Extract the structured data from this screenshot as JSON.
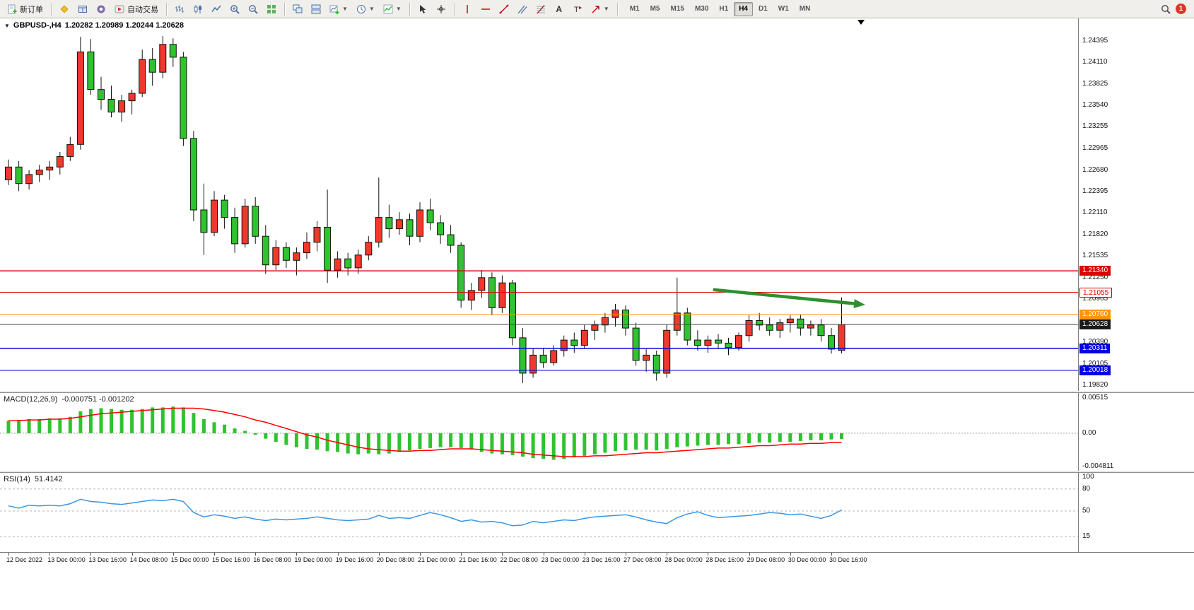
{
  "toolbar": {
    "new_order_label": "新订单",
    "autotrading_label": "自动交易",
    "timeframes": [
      "M1",
      "M5",
      "M15",
      "M30",
      "H1",
      "H4",
      "D1",
      "W1",
      "MN"
    ],
    "active_timeframe": "H4",
    "notification_count": "1"
  },
  "chart": {
    "title": "GBPUSD-,H4",
    "ohlc_text": "1.20282 1.20989 1.20244 1.20628",
    "bull_color": "#f0382c",
    "bear_color": "#2fc32f",
    "price_axis_labels": [
      "1.24395",
      "1.24110",
      "1.23825",
      "1.23540",
      "1.23255",
      "1.22965",
      "1.22680",
      "1.22395",
      "1.22110",
      "1.21820",
      "1.21535",
      "1.21250",
      "1.20965",
      "1.20680",
      "1.20390",
      "1.20105",
      "1.19820"
    ],
    "time_axis_labels": [
      "12 Dec 2022",
      "13 Dec 00:00",
      "13 Dec 16:00",
      "14 Dec 08:00",
      "15 Dec 00:00",
      "15 Dec 16:00",
      "16 Dec 08:00",
      "19 Dec 00:00",
      "19 Dec 16:00",
      "20 Dec 08:00",
      "21 Dec 00:00",
      "21 Dec 16:00",
      "22 Dec 08:00",
      "23 Dec 00:00",
      "23 Dec 16:00",
      "27 Dec 08:00",
      "28 Dec 00:00",
      "28 Dec 16:00",
      "29 Dec 08:00",
      "30 Dec 00:00",
      "30 Dec 16:00"
    ],
    "hlines": [
      {
        "label": "1.21340",
        "value": 1.2134,
        "color": "#dd0000",
        "tag_bg": "#dd0000",
        "tag_fg": "#ffffff"
      },
      {
        "label": "1.21055",
        "value": 1.21055,
        "color": "#dd0000",
        "tag_bg": "#ffffff",
        "tag_fg": "#dd0000",
        "tag_border": "#dd0000"
      },
      {
        "label": "1.20760",
        "value": 1.2076,
        "color": "#ff9500",
        "tag_bg": "#ff9500",
        "tag_fg": "#ffffff"
      },
      {
        "label": "1.20628",
        "value": 1.20628,
        "color": "#444444",
        "tag_bg": "#1a1a1a",
        "tag_fg": "#ffffff"
      },
      {
        "label": "1.20311",
        "value": 1.20311,
        "color": "#0000e0",
        "tag_bg": "#0000e0",
        "tag_fg": "#ffffff"
      },
      {
        "label": "1.20018",
        "value": 1.20018,
        "color": "#0000e0",
        "tag_bg": "#0000e0",
        "tag_fg": "#ffffff"
      }
    ],
    "arrow": {
      "from_index": 68.5,
      "from_price": 1.2109,
      "to_index": 83.3,
      "to_price": 1.2089,
      "color": "#2f8f2f"
    },
    "candles": [
      [
        1.2255,
        1.2282,
        1.2248,
        1.2272
      ],
      [
        1.2272,
        1.228,
        1.224,
        1.225
      ],
      [
        1.225,
        1.2268,
        1.2242,
        1.2262
      ],
      [
        1.2262,
        1.2275,
        1.2252,
        1.2268
      ],
      [
        1.2268,
        1.228,
        1.2255,
        1.2272
      ],
      [
        1.2272,
        1.2292,
        1.2262,
        1.2286
      ],
      [
        1.2286,
        1.2312,
        1.228,
        1.2302
      ],
      [
        1.2302,
        1.2445,
        1.2295,
        1.2425
      ],
      [
        1.2425,
        1.2442,
        1.2368,
        1.2375
      ],
      [
        1.2375,
        1.2392,
        1.2348,
        1.2362
      ],
      [
        1.2362,
        1.238,
        1.2338,
        1.2345
      ],
      [
        1.2345,
        1.2368,
        1.2332,
        1.236
      ],
      [
        1.236,
        1.2375,
        1.2342,
        1.237
      ],
      [
        1.237,
        1.2428,
        1.2365,
        1.2415
      ],
      [
        1.2415,
        1.243,
        1.238,
        1.2398
      ],
      [
        1.2398,
        1.2446,
        1.239,
        1.2435
      ],
      [
        1.2435,
        1.2443,
        1.2405,
        1.2418
      ],
      [
        1.2418,
        1.2425,
        1.23,
        1.231
      ],
      [
        1.231,
        1.232,
        1.22,
        1.2215
      ],
      [
        1.2215,
        1.225,
        1.2155,
        1.2185
      ],
      [
        1.2185,
        1.224,
        1.218,
        1.2228
      ],
      [
        1.2228,
        1.2235,
        1.219,
        1.2205
      ],
      [
        1.2205,
        1.2218,
        1.2158,
        1.217
      ],
      [
        1.217,
        1.223,
        1.2165,
        1.222
      ],
      [
        1.222,
        1.2232,
        1.217,
        1.218
      ],
      [
        1.218,
        1.2195,
        1.213,
        1.2142
      ],
      [
        1.2142,
        1.2175,
        1.2135,
        1.2165
      ],
      [
        1.2165,
        1.2172,
        1.2138,
        1.2148
      ],
      [
        1.2148,
        1.2165,
        1.2128,
        1.2158
      ],
      [
        1.2158,
        1.2185,
        1.215,
        1.2172
      ],
      [
        1.2172,
        1.22,
        1.216,
        1.2192
      ],
      [
        1.2192,
        1.2242,
        1.2118,
        1.2135
      ],
      [
        1.2135,
        1.216,
        1.2125,
        1.215
      ],
      [
        1.215,
        1.2158,
        1.2128,
        1.2138
      ],
      [
        1.2138,
        1.2162,
        1.213,
        1.2155
      ],
      [
        1.2155,
        1.218,
        1.2148,
        1.2172
      ],
      [
        1.2172,
        1.2258,
        1.2165,
        1.2205
      ],
      [
        1.2205,
        1.2222,
        1.2178,
        1.219
      ],
      [
        1.219,
        1.2212,
        1.2182,
        1.2202
      ],
      [
        1.2202,
        1.221,
        1.2168,
        1.218
      ],
      [
        1.218,
        1.2225,
        1.2172,
        1.2215
      ],
      [
        1.2215,
        1.223,
        1.2188,
        1.2198
      ],
      [
        1.2198,
        1.2208,
        1.217,
        1.2182
      ],
      [
        1.2182,
        1.2195,
        1.2158,
        1.2168
      ],
      [
        1.2168,
        1.2172,
        1.2085,
        1.2095
      ],
      [
        1.2095,
        1.2118,
        1.2082,
        1.2108
      ],
      [
        1.2108,
        1.2135,
        1.2098,
        1.2125
      ],
      [
        1.2125,
        1.2132,
        1.2075,
        1.2085
      ],
      [
        1.2085,
        1.2128,
        1.2078,
        1.2118
      ],
      [
        1.2118,
        1.2122,
        1.2035,
        1.2045
      ],
      [
        1.2045,
        1.2058,
        1.1985,
        1.1998
      ],
      [
        1.1998,
        1.203,
        1.1992,
        1.2022
      ],
      [
        1.2022,
        1.2032,
        1.2005,
        1.2012
      ],
      [
        1.2012,
        1.2035,
        1.2008,
        1.2028
      ],
      [
        1.2028,
        1.2048,
        1.202,
        1.2042
      ],
      [
        1.2042,
        1.2052,
        1.2025,
        1.2035
      ],
      [
        1.2035,
        1.2062,
        1.203,
        1.2055
      ],
      [
        1.2055,
        1.2068,
        1.2042,
        1.2062
      ],
      [
        1.2062,
        1.2078,
        1.2052,
        1.2072
      ],
      [
        1.2072,
        1.209,
        1.206,
        1.2082
      ],
      [
        1.2082,
        1.2088,
        1.2048,
        1.2058
      ],
      [
        1.2058,
        1.2065,
        1.2008,
        1.2015
      ],
      [
        1.2015,
        1.203,
        1.2,
        1.2022
      ],
      [
        1.2022,
        1.2028,
        1.1988,
        1.1998
      ],
      [
        1.1998,
        1.2062,
        1.1992,
        1.2055
      ],
      [
        1.2055,
        1.2125,
        1.2048,
        1.2078
      ],
      [
        1.2078,
        1.2085,
        1.2035,
        1.2042
      ],
      [
        1.2042,
        1.2055,
        1.2028,
        1.2035
      ],
      [
        1.2035,
        1.2048,
        1.2025,
        1.2042
      ],
      [
        1.2042,
        1.205,
        1.203,
        1.2038
      ],
      [
        1.2038,
        1.2045,
        1.2022,
        1.2032
      ],
      [
        1.2032,
        1.2052,
        1.2028,
        1.2048
      ],
      [
        1.2048,
        1.2075,
        1.204,
        1.2068
      ],
      [
        1.2068,
        1.2078,
        1.2055,
        1.2062
      ],
      [
        1.2062,
        1.2072,
        1.2048,
        1.2055
      ],
      [
        1.2055,
        1.207,
        1.2045,
        1.2065
      ],
      [
        1.2065,
        1.2075,
        1.2052,
        1.207
      ],
      [
        1.207,
        1.2076,
        1.2048,
        1.2058
      ],
      [
        1.2058,
        1.2068,
        1.2048,
        1.2062
      ],
      [
        1.2062,
        1.207,
        1.204,
        1.2048
      ],
      [
        1.2048,
        1.2058,
        1.2024,
        1.203
      ],
      [
        1.20282,
        1.20989,
        1.20244,
        1.20628
      ]
    ]
  },
  "macd": {
    "label": "MACD(12,26,9)",
    "values_text": "-0.000751 -0.001202",
    "axis_labels": [
      "0.00515",
      "0.00",
      "-0.004811"
    ],
    "scale_max": 0.00515,
    "scale_min": -0.004811,
    "histogram_color": "#2fc32f",
    "signal_color": "#ff0000",
    "histogram": [
      0.0016,
      0.0017,
      0.0018,
      0.0018,
      0.0019,
      0.0019,
      0.0021,
      0.0028,
      0.0031,
      0.0032,
      0.0031,
      0.003,
      0.003,
      0.0031,
      0.0033,
      0.0033,
      0.0034,
      0.0033,
      0.0026,
      0.0018,
      0.0014,
      0.0011,
      0.0006,
      0.0003,
      -0.0002,
      -0.0007,
      -0.0011,
      -0.0015,
      -0.0018,
      -0.002,
      -0.0021,
      -0.0023,
      -0.0024,
      -0.0026,
      -0.0027,
      -0.0026,
      -0.0027,
      -0.0026,
      -0.0024,
      -0.0022,
      -0.002,
      -0.0019,
      -0.0018,
      -0.0018,
      -0.0019,
      -0.0021,
      -0.0024,
      -0.0026,
      -0.0027,
      -0.0028,
      -0.003,
      -0.0032,
      -0.0033,
      -0.0034,
      -0.0033,
      -0.0031,
      -0.0029,
      -0.0027,
      -0.0025,
      -0.0023,
      -0.0022,
      -0.0021,
      -0.0021,
      -0.0022,
      -0.002,
      -0.0018,
      -0.0017,
      -0.0016,
      -0.0015,
      -0.0015,
      -0.0014,
      -0.0014,
      -0.0013,
      -0.0012,
      -0.0012,
      -0.0011,
      -0.0011,
      -0.001,
      -0.0009,
      -0.0009,
      -0.0008,
      -0.00075
    ],
    "signal": [
      0.0016,
      0.0016,
      0.0017,
      0.0017,
      0.0018,
      0.0018,
      0.0019,
      0.0021,
      0.0023,
      0.0025,
      0.0026,
      0.0027,
      0.0028,
      0.0029,
      0.003,
      0.0031,
      0.0032,
      0.0032,
      0.0032,
      0.0031,
      0.0029,
      0.0027,
      0.0024,
      0.0021,
      0.0017,
      0.0014,
      0.001,
      0.0006,
      0.0002,
      -0.0002,
      -0.0005,
      -0.0009,
      -0.0012,
      -0.0015,
      -0.0018,
      -0.002,
      -0.0021,
      -0.0022,
      -0.0023,
      -0.0023,
      -0.0022,
      -0.0022,
      -0.0021,
      -0.002,
      -0.002,
      -0.002,
      -0.0021,
      -0.0022,
      -0.0023,
      -0.0024,
      -0.0025,
      -0.0027,
      -0.0028,
      -0.0029,
      -0.003,
      -0.003,
      -0.003,
      -0.0029,
      -0.0029,
      -0.0028,
      -0.0027,
      -0.0026,
      -0.0025,
      -0.0025,
      -0.0024,
      -0.0023,
      -0.0022,
      -0.0021,
      -0.002,
      -0.0019,
      -0.0019,
      -0.0018,
      -0.0017,
      -0.0016,
      -0.0016,
      -0.0015,
      -0.0014,
      -0.0014,
      -0.0013,
      -0.0013,
      -0.0012,
      -0.0012
    ]
  },
  "rsi": {
    "label": "RSI(14)",
    "value_text": "51.4142",
    "axis_labels": [
      "100",
      "80",
      "50",
      "15"
    ],
    "levels": [
      80,
      50,
      15
    ],
    "color": "#3b96e0",
    "series": [
      57,
      54,
      58,
      57,
      58,
      57,
      60,
      66,
      63,
      62,
      60,
      59,
      61,
      63,
      65,
      64,
      66,
      63,
      48,
      42,
      45,
      43,
      40,
      42,
      39,
      37,
      39,
      38,
      39,
      40,
      42,
      40,
      38,
      37,
      38,
      39,
      44,
      40,
      41,
      40,
      44,
      48,
      45,
      41,
      36,
      38,
      35,
      36,
      34,
      30,
      31,
      36,
      34,
      36,
      38,
      37,
      40,
      42,
      43,
      44,
      45,
      42,
      38,
      35,
      33,
      41,
      46,
      49,
      44,
      41,
      42,
      43,
      44,
      46,
      48,
      47,
      45,
      46,
      43,
      40,
      44,
      51.4
    ]
  }
}
